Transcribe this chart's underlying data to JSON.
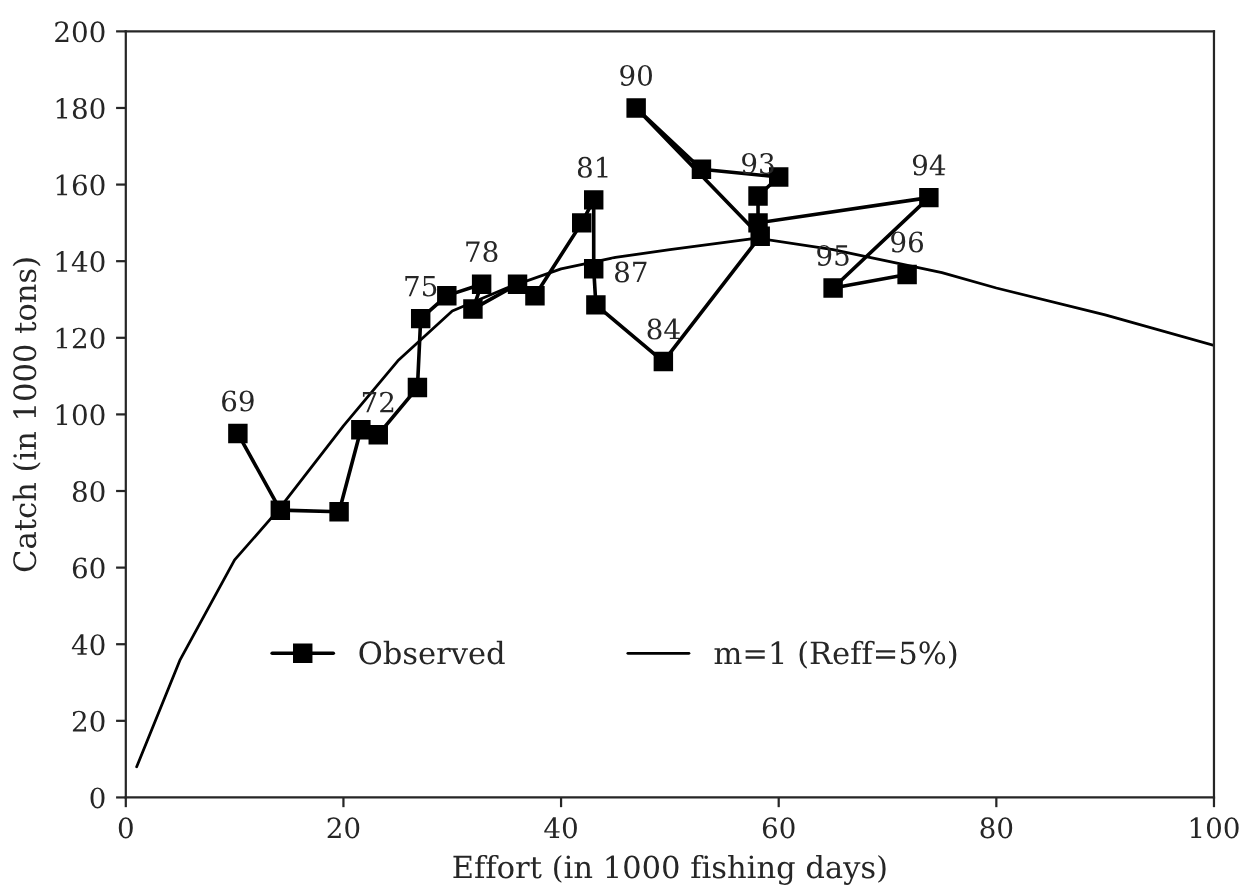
{
  "chart_data": {
    "type": "line",
    "xlabel": "Effort (in 1000 fishing days)",
    "ylabel": "Catch (in 1000 tons)",
    "xlim": [
      0,
      100
    ],
    "ylim": [
      0,
      200
    ],
    "xticks": [
      0,
      20,
      40,
      60,
      80,
      100
    ],
    "yticks": [
      0,
      20,
      40,
      60,
      80,
      100,
      120,
      140,
      160,
      180,
      200
    ],
    "grid": false,
    "legend": "bottom",
    "series": [
      {
        "name": "Observed",
        "color": "#000000",
        "marker": "square",
        "line_style": "solid",
        "x": [
          10.3,
          14.2,
          19.6,
          21.6,
          23.2,
          26.8,
          27.1,
          29.5,
          32.7,
          31.9,
          36,
          37.6,
          41.9,
          43,
          43,
          43.2,
          49.4,
          58.3,
          46.9,
          52.9,
          60,
          58.1,
          58.1,
          73.8,
          65,
          71.8
        ],
        "values": [
          95,
          75,
          74.6,
          96,
          94.7,
          107,
          125,
          131,
          134,
          127.5,
          134,
          131,
          150,
          156,
          138,
          128.6,
          113.8,
          146.5,
          180,
          164,
          162,
          157,
          150,
          156.6,
          133,
          136.5
        ]
      },
      {
        "name": "m=1 (Reff=5%)",
        "color": "#000000",
        "marker": "none",
        "line_style": "solid",
        "x": [
          1,
          5,
          10,
          14,
          20,
          25,
          30,
          35,
          40,
          45,
          50,
          58,
          65,
          70,
          75,
          80,
          90,
          100
        ],
        "values": [
          8,
          36,
          62,
          75,
          97,
          114,
          127,
          133,
          138,
          141,
          143,
          146,
          143,
          140,
          137,
          133,
          126,
          118
        ]
      }
    ],
    "annotations": [
      {
        "text": "69",
        "x": 10.3,
        "y": 95
      },
      {
        "text": "72",
        "x": 23.2,
        "y": 94.7
      },
      {
        "text": "75",
        "x": 27.1,
        "y": 125
      },
      {
        "text": "78",
        "x": 32.7,
        "y": 134
      },
      {
        "text": "81",
        "x": 43,
        "y": 156
      },
      {
        "text": "87",
        "x": 43,
        "y": 138
      },
      {
        "text": "90",
        "x": 46.9,
        "y": 180
      },
      {
        "text": "84",
        "x": 49.4,
        "y": 113.8
      },
      {
        "text": "93",
        "x": 58.1,
        "y": 157
      },
      {
        "text": "95",
        "x": 65,
        "y": 133
      },
      {
        "text": "96",
        "x": 71.8,
        "y": 136.5
      },
      {
        "text": "94",
        "x": 73.8,
        "y": 156.6
      }
    ]
  }
}
